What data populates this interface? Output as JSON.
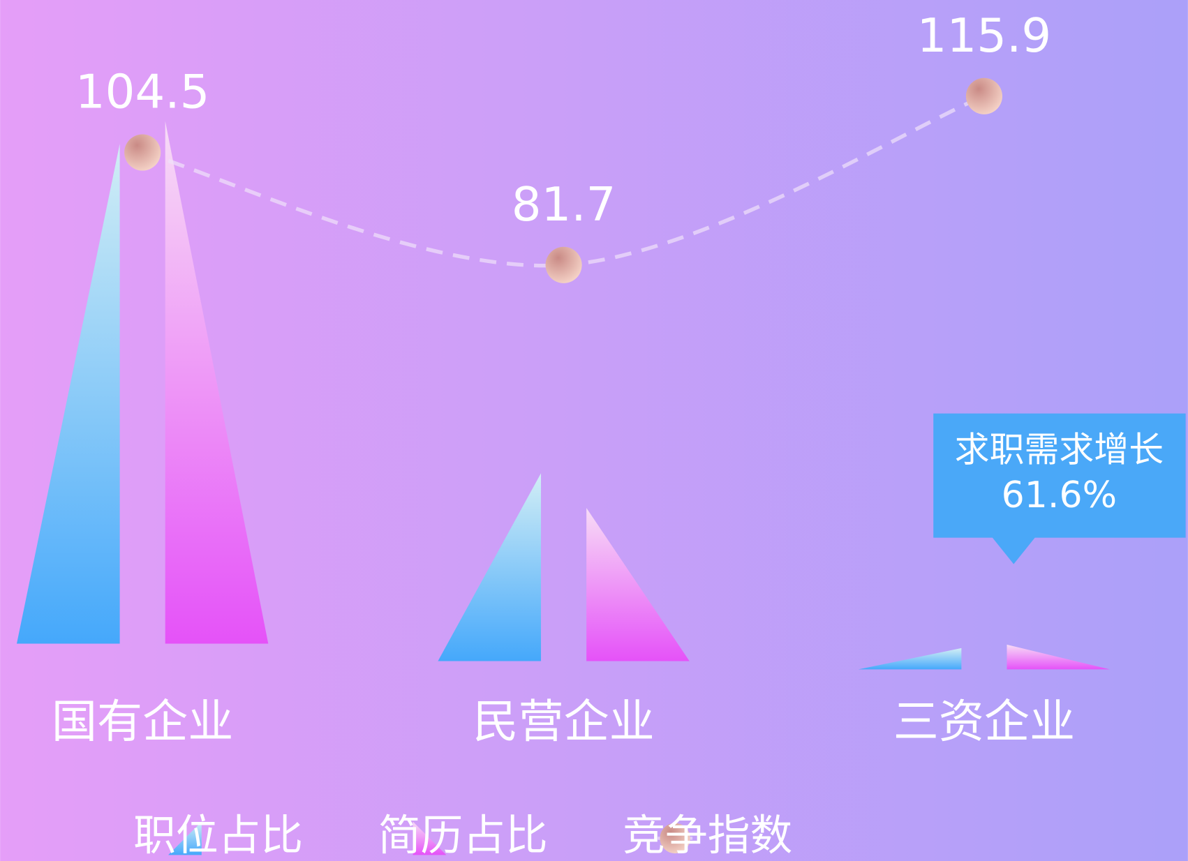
{
  "chart_data": {
    "type": "bar_line",
    "categories": [
      "国有企业",
      "民营企业",
      "三资企业"
    ],
    "series": [
      {
        "name": "职位占比",
        "type": "bar",
        "color": "#45a8fb",
        "values": [
          70.5,
          26.5,
          3.0
        ]
      },
      {
        "name": "简历占比",
        "type": "bar",
        "color": "#e552f8",
        "values": [
          73.7,
          21.6,
          3.5
        ]
      },
      {
        "name": "竞争指数",
        "type": "line",
        "color": "#d9968e",
        "values": [
          104.5,
          81.7,
          115.9
        ]
      }
    ],
    "annotation": {
      "text": "求职需求增长",
      "value": "61.6%"
    }
  }
}
